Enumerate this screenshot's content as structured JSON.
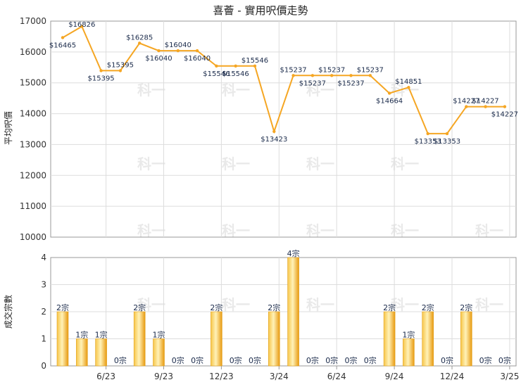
{
  "chart_data": [
    {
      "type": "line",
      "title": "喜薈 - 實用呎價走勢",
      "ylabel": "平均呎價",
      "ylim": [
        10000,
        17000
      ],
      "yticks": [
        "10000",
        "11000",
        "12000",
        "13000",
        "14000",
        "15000",
        "16000",
        "17000"
      ],
      "x_tick_labels": [
        "6/23",
        "9/23",
        "12/23",
        "3/24",
        "6/24",
        "9/24",
        "12/24",
        "3/25"
      ],
      "grid": true,
      "points": [
        16465,
        16826,
        15395,
        15395,
        16285,
        16040,
        16040,
        16040,
        15546,
        15546,
        15546,
        13423,
        15237,
        15237,
        15237,
        15237,
        15237,
        14664,
        14851,
        13353,
        13353,
        14227,
        14227,
        14227
      ],
      "labels": [
        "$16465",
        "$16826",
        "$15395",
        "$15395",
        "$16285",
        "$16040",
        "$16040",
        "$16040",
        "$15546",
        "$15546",
        "$15546",
        "$13423",
        "$15237",
        "$15237",
        "$15237",
        "$15237",
        "$15237",
        "$14664",
        "$14851",
        "$13353",
        "$13353",
        "$14227",
        "$14227",
        "$14227"
      ],
      "line_color": "#f5a623"
    },
    {
      "type": "bar",
      "ylabel": "成交宗數",
      "ylim": [
        0,
        4
      ],
      "yticks": [
        "0",
        "1",
        "2",
        "3",
        "4"
      ],
      "values": [
        2,
        1,
        1,
        0,
        2,
        1,
        0,
        0,
        2,
        0,
        0,
        2,
        4,
        0,
        0,
        0,
        0,
        2,
        1,
        2,
        0,
        2,
        0,
        0
      ],
      "labels": [
        "2宗",
        "1宗",
        "1宗",
        "0宗",
        "2宗",
        "1宗",
        "0宗",
        "0宗",
        "2宗",
        "0宗",
        "0宗",
        "2宗",
        "4宗",
        "0宗",
        "0宗",
        "0宗",
        "0宗",
        "2宗",
        "1宗",
        "2宗",
        "0宗",
        "2宗",
        "0宗",
        "0宗"
      ],
      "bar_color": "#f5b324"
    }
  ],
  "watermark": "科一"
}
